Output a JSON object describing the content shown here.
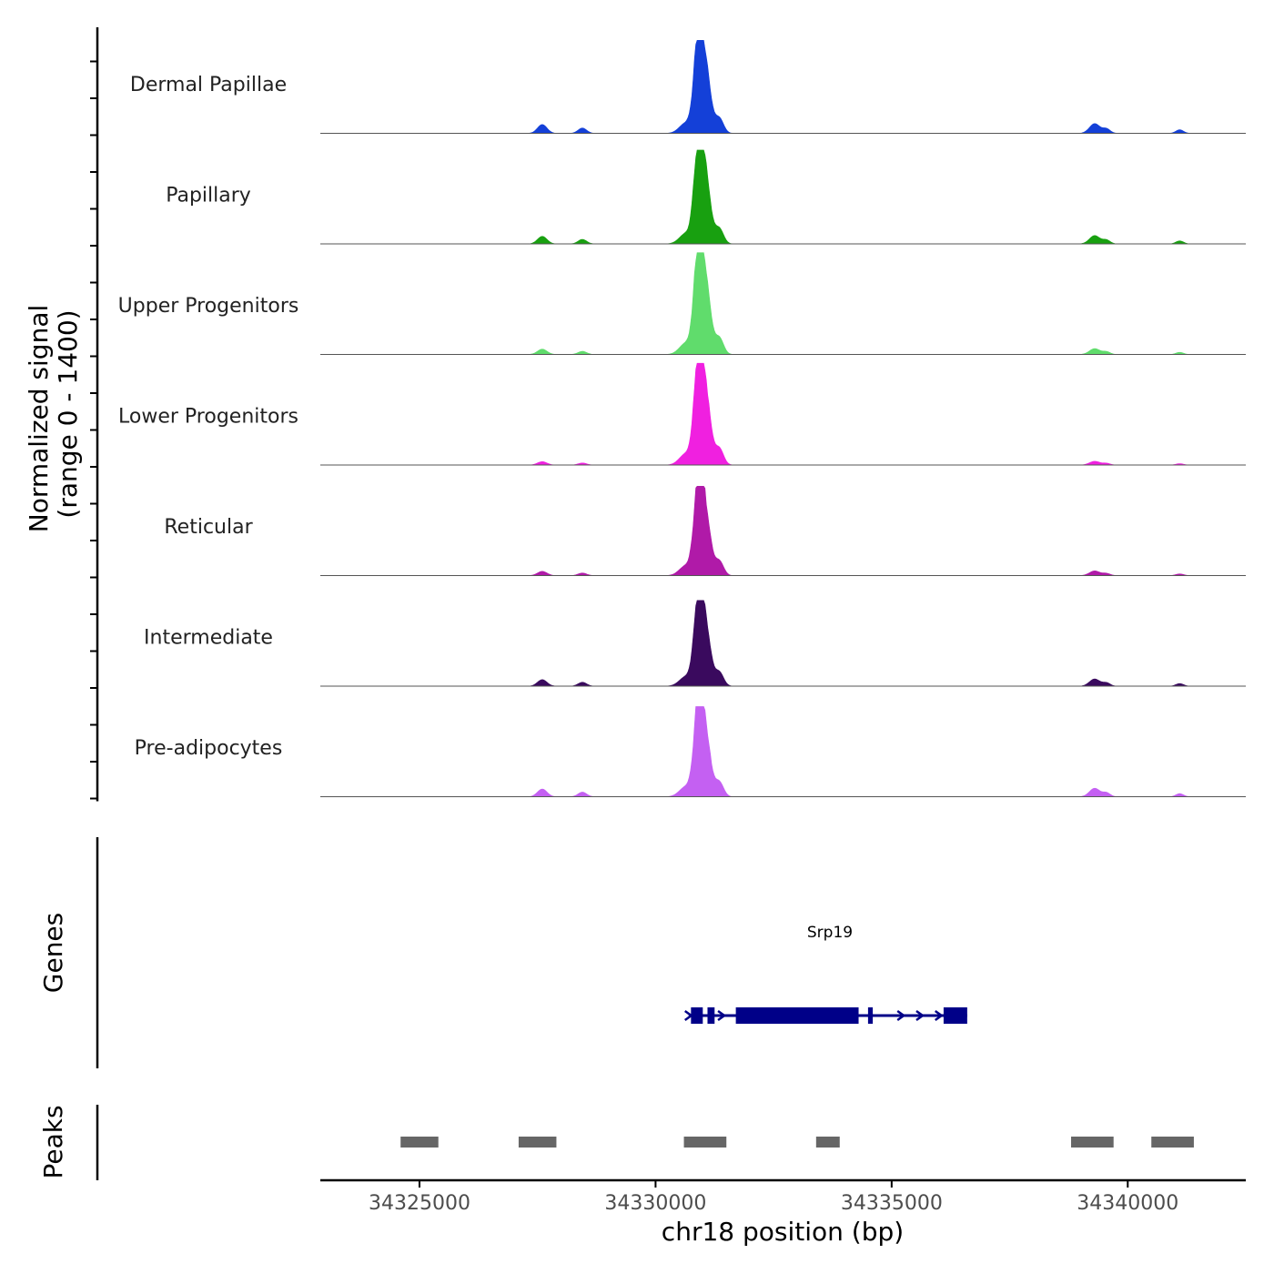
{
  "chart_data": {
    "type": "area",
    "title": "",
    "ylabel_line1": "Normalized signal",
    "ylabel_line2": "(range 0 - 1400)",
    "ylim": [
      0,
      1400
    ],
    "xlabel": "chr18 position (bp)",
    "xlim": [
      34322900,
      34342500
    ],
    "xticks": [
      34325000,
      34330000,
      34335000,
      34340000
    ],
    "xtick_labels": [
      "34325000",
      "34330000",
      "34335000",
      "34340000"
    ],
    "genes_label": "Genes",
    "peaks_label": "Peaks",
    "tracks": [
      {
        "name": "Dermal Papillae",
        "color": "#1440D8",
        "peak_max": 1280,
        "side_scale": 1.0
      },
      {
        "name": "Papillary",
        "color": "#18A010",
        "peak_max": 1290,
        "side_scale": 0.85
      },
      {
        "name": "Upper Progenitors",
        "color": "#60DC6C",
        "peak_max": 1400,
        "side_scale": 0.55
      },
      {
        "name": "Lower Progenitors",
        "color": "#F020E0",
        "peak_max": 1400,
        "side_scale": 0.35
      },
      {
        "name": "Reticular",
        "color": "#B01AA8",
        "peak_max": 1230,
        "side_scale": 0.5
      },
      {
        "name": "Intermediate",
        "color": "#3A0A5E",
        "peak_max": 1180,
        "side_scale": 0.8
      },
      {
        "name": "Pre-adipocytes",
        "color": "#C460F2",
        "peak_max": 1240,
        "side_scale": 0.9
      }
    ],
    "signal_shape": {
      "main_peaks": [
        {
          "pos": 34330900,
          "height": 1.0,
          "width": 90
        },
        {
          "pos": 34331050,
          "height": 0.78,
          "width": 110
        },
        {
          "pos": 34330650,
          "height": 0.12,
          "width": 140
        },
        {
          "pos": 34331350,
          "height": 0.17,
          "width": 90
        }
      ],
      "side_peaks": [
        {
          "pos": 34327600,
          "height": 0.1,
          "width": 100
        },
        {
          "pos": 34328450,
          "height": 0.06,
          "width": 90
        },
        {
          "pos": 34339300,
          "height": 0.11,
          "width": 110
        },
        {
          "pos": 34339550,
          "height": 0.05,
          "width": 80
        },
        {
          "pos": 34341100,
          "height": 0.04,
          "width": 80
        }
      ]
    },
    "gene": {
      "name": "Srp19",
      "color": "#000088",
      "strand": "+",
      "start": 34330700,
      "end": 34336600,
      "exons": [
        [
          34330750,
          34331000
        ],
        [
          34331100,
          34331250
        ],
        [
          34331700,
          34334300
        ],
        [
          34334500,
          34334600
        ],
        [
          34336100,
          34336600
        ]
      ],
      "arrows": [
        34330700,
        34331400,
        34335200,
        34335600,
        34336000,
        34336400
      ]
    },
    "peaks": [
      [
        34324600,
        34325400
      ],
      [
        34327100,
        34327900
      ],
      [
        34330600,
        34331500
      ],
      [
        34333400,
        34333900
      ],
      [
        34338800,
        34339700
      ],
      [
        34340500,
        34341400
      ]
    ],
    "peak_color": "#666666"
  }
}
